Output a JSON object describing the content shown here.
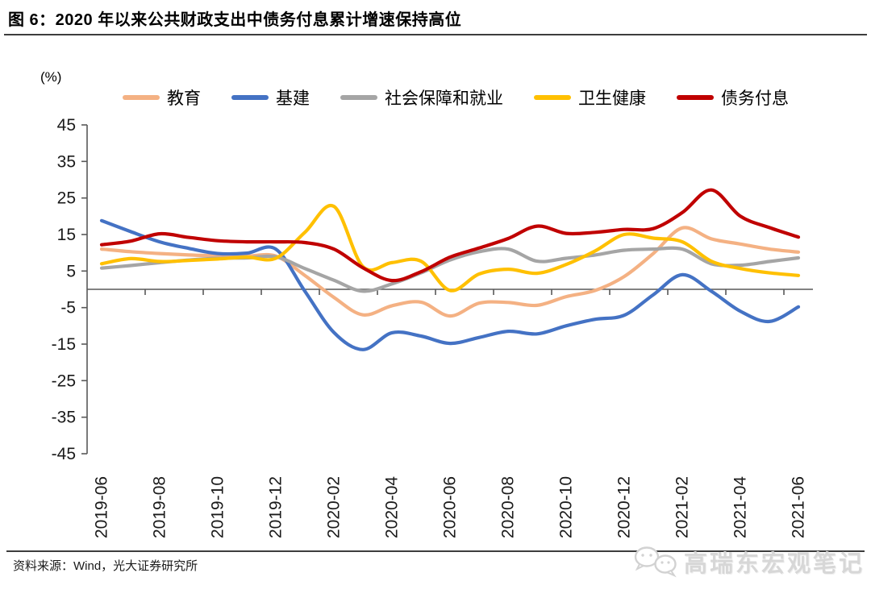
{
  "header": {
    "title": "图 6：2020 年以来公共财政支出中债务付息累计增速保持高位"
  },
  "chart_data": {
    "type": "line",
    "unit_label": "(%)",
    "x": [
      "2019-06",
      "2019-07",
      "2019-08",
      "2019-09",
      "2019-10",
      "2019-11",
      "2019-12",
      "2020-01",
      "2020-02",
      "2020-03",
      "2020-04",
      "2020-05",
      "2020-06",
      "2020-07",
      "2020-08",
      "2020-09",
      "2020-10",
      "2020-11",
      "2020-12",
      "2021-01",
      "2021-02",
      "2021-03",
      "2021-04",
      "2021-05",
      "2021-06"
    ],
    "x_label_interval": 2,
    "x_tick_labels": [
      "2019-06",
      "2019-08",
      "2019-10",
      "2019-12",
      "2020-02",
      "2020-04",
      "2020-06",
      "2020-08",
      "2020-10",
      "2020-12",
      "2021-02",
      "2021-04",
      "2021-06"
    ],
    "series": [
      {
        "name": "教育",
        "color": "#F4B183",
        "values": [
          11.0,
          10.3,
          9.8,
          9.4,
          9.2,
          9.1,
          9.1,
          3.8,
          -2.2,
          -7.0,
          -4.5,
          -3.5,
          -7.3,
          -3.8,
          -3.6,
          -4.4,
          -2.0,
          -0.3,
          3.5,
          9.8,
          16.8,
          13.8,
          12.4,
          11.0,
          10.2
        ]
      },
      {
        "name": "基建",
        "color": "#4472C4",
        "values": [
          18.8,
          15.8,
          13.0,
          11.2,
          9.8,
          9.9,
          11.0,
          -0.5,
          -11.8,
          -16.5,
          -11.9,
          -12.8,
          -14.8,
          -13.2,
          -11.5,
          -12.2,
          -10.0,
          -8.2,
          -7.1,
          -1.5,
          4.0,
          -0.5,
          -6.0,
          -8.8,
          -4.8
        ]
      },
      {
        "name": "社会保障和就业",
        "color": "#A5A5A5",
        "values": [
          5.8,
          6.5,
          7.3,
          8.0,
          8.5,
          8.6,
          8.9,
          5.7,
          2.5,
          -0.5,
          1.5,
          4.5,
          8.0,
          10.3,
          11.0,
          7.7,
          8.5,
          9.4,
          10.7,
          11.0,
          11.0,
          7.0,
          6.6,
          7.6,
          8.6
        ]
      },
      {
        "name": "卫生健康",
        "color": "#FFC000",
        "values": [
          7.0,
          8.4,
          7.6,
          7.9,
          8.3,
          8.8,
          8.5,
          15.6,
          22.7,
          6.2,
          7.3,
          7.7,
          -0.3,
          4.2,
          5.5,
          4.4,
          6.8,
          10.5,
          15.0,
          14.0,
          13.0,
          7.7,
          5.7,
          4.5,
          3.8
        ]
      },
      {
        "name": "债务付息",
        "color": "#C00000",
        "values": [
          12.2,
          13.2,
          15.2,
          14.2,
          13.3,
          13.0,
          13.0,
          12.8,
          11.0,
          5.9,
          2.4,
          4.8,
          8.8,
          11.3,
          13.9,
          17.3,
          15.3,
          15.6,
          16.4,
          16.6,
          21.0,
          27.2,
          20.0,
          16.9,
          14.3
        ]
      }
    ],
    "ylim": [
      -45,
      45
    ],
    "yticks": [
      45,
      35,
      25,
      15,
      5,
      -5,
      -15,
      -25,
      -35,
      -45
    ],
    "grid": false,
    "smooth": true,
    "legend_position": "top",
    "axis_color": "#595959",
    "text_color": "#1a1a1a"
  },
  "footer": {
    "source": "资料来源：Wind，光大证券研究所",
    "watermark": "高瑞东宏观笔记"
  }
}
